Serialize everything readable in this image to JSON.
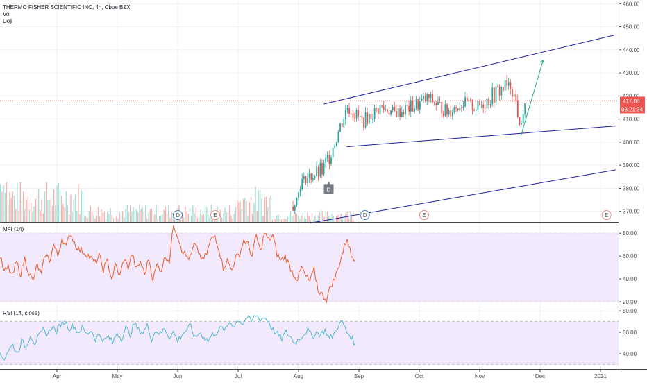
{
  "chart_data": [
    {
      "type": "candlestick",
      "title": "THERMO FISHER SCIENTIFIC INC, 4h, Cboe BZX",
      "legend": [
        "Vol",
        "Doji"
      ],
      "y_ticks": [
        "370.00",
        "380.00",
        "390.00",
        "400.00",
        "410.00",
        "420.00",
        "430.00",
        "440.00",
        "450.00",
        "460.00"
      ],
      "ylim": [
        366,
        461
      ],
      "x_ticks": [
        "Apr",
        "May",
        "Jun",
        "Jul",
        "Aug",
        "Sep",
        "Oct",
        "Nov",
        "Dec",
        "2021"
      ],
      "last_price": "417.88",
      "countdown": "03:21:34",
      "doji_marker": "D",
      "event_markers": [
        {
          "label": "D",
          "month_pos": 3.0
        },
        {
          "label": "E",
          "month_pos": 3.62
        },
        {
          "label": "D",
          "month_pos": 6.1
        },
        {
          "label": "E",
          "month_pos": 7.08
        },
        {
          "label": "E",
          "month_pos": 10.1
        }
      ],
      "price_path": [
        [
          0,
          [
            370,
            385
          ]
        ],
        [
          4.9,
          [
            370,
            371
          ]
        ],
        [
          5.05,
          [
            382,
            385
          ]
        ],
        [
          5.4,
          [
            383,
            392
          ]
        ],
        [
          5.65,
          [
            401,
            408
          ]
        ],
        [
          5.8,
          [
            412,
            419
          ]
        ],
        [
          6.05,
          [
            406,
            412
          ]
        ],
        [
          6.35,
          [
            412,
            418
          ]
        ],
        [
          6.6,
          [
            410,
            415
          ]
        ],
        [
          6.9,
          [
            412,
            419
          ]
        ],
        [
          7.15,
          [
            416,
            422
          ]
        ],
        [
          7.45,
          [
            410,
            416
          ]
        ],
        [
          7.7,
          [
            414,
            420
          ]
        ],
        [
          7.95,
          [
            412,
            418
          ]
        ],
        [
          8.2,
          [
            416,
            424
          ]
        ],
        [
          8.4,
          [
            420,
            428
          ]
        ],
        [
          8.5,
          [
            422,
            426
          ]
        ],
        [
          8.6,
          [
            414,
            420
          ]
        ],
        [
          8.65,
          [
            404,
            408
          ]
        ],
        [
          8.75,
          [
            416,
            418
          ]
        ]
      ],
      "trendlines": [
        {
          "name": "channel-top",
          "color": "#1e1ea0",
          "from": [
            5.42,
            416.5
          ],
          "to": [
            10.25,
            446.5
          ]
        },
        {
          "name": "channel-mid",
          "color": "#1e1ea0",
          "from": [
            5.8,
            398
          ],
          "to": [
            10.25,
            407
          ]
        },
        {
          "name": "channel-low",
          "color": "#1e1ea0",
          "from": [
            5.2,
            365
          ],
          "to": [
            10.25,
            388
          ]
        },
        {
          "name": "projection",
          "color": "#2aa88a",
          "from": [
            8.68,
            402.5
          ],
          "to": [
            9.05,
            435.5
          ]
        }
      ]
    },
    {
      "type": "line",
      "legend": [
        "MFI (14)"
      ],
      "y_ticks": [
        "20.00",
        "40.00",
        "60.00",
        "80.00"
      ],
      "ylim": [
        17,
        88
      ],
      "band": [
        20,
        80
      ],
      "color": "#f05a28",
      "values": [
        60,
        46,
        50,
        42,
        55,
        44,
        58,
        45,
        38,
        52,
        44,
        62,
        56,
        70,
        60,
        76,
        68,
        80,
        72,
        66,
        64,
        62,
        58,
        54,
        60,
        48,
        56,
        40,
        52,
        42,
        58,
        50,
        62,
        48,
        55,
        44,
        58,
        40,
        52,
        48,
        60,
        56,
        88,
        78,
        66,
        60,
        58,
        70,
        64,
        56,
        62,
        74,
        78,
        66,
        50,
        56,
        48,
        58,
        62,
        74,
        70,
        60,
        78,
        64,
        80,
        74,
        78,
        62,
        56,
        60,
        52,
        44,
        40,
        50,
        42,
        38,
        48,
        30,
        26,
        22,
        34,
        40,
        52,
        64,
        76,
        60,
        58
      ]
    },
    {
      "type": "line",
      "legend": [
        "RSI (14, close)"
      ],
      "y_ticks": [
        "40.00",
        "60.00",
        "80.00"
      ],
      "ylim": [
        27,
        82
      ],
      "band": [
        30,
        70
      ],
      "color": "#4db8d0",
      "values": [
        38,
        36,
        44,
        48,
        40,
        52,
        46,
        58,
        50,
        56,
        62,
        58,
        66,
        60,
        68,
        70,
        64,
        66,
        60,
        64,
        58,
        62,
        54,
        58,
        52,
        56,
        50,
        60,
        54,
        64,
        58,
        68,
        62,
        60,
        66,
        54,
        62,
        58,
        64,
        56,
        60,
        52,
        58,
        62,
        66,
        54,
        60,
        56,
        52,
        58,
        60,
        64,
        62,
        70,
        66,
        72,
        68,
        74,
        70,
        76,
        72,
        74,
        70,
        62,
        58,
        54,
        60,
        56,
        50,
        54,
        58,
        62,
        56,
        60,
        58,
        62,
        54,
        58,
        66,
        70,
        60,
        56,
        48
      ]
    }
  ]
}
